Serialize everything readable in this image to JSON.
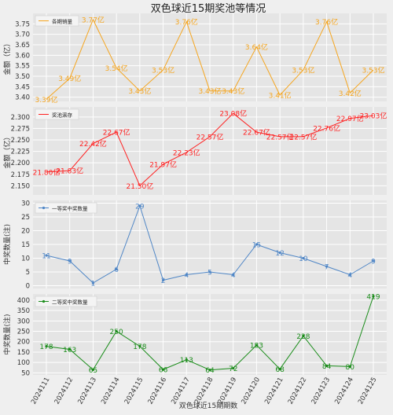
{
  "title": "双色球近15期奖池等情况",
  "chart_data": [
    {
      "type": "line",
      "legend": "各期销量",
      "ylabel": "金额（亿）",
      "ylim": [
        3.38,
        3.8
      ],
      "yticks": [
        3.4,
        3.45,
        3.5,
        3.55,
        3.6,
        3.65,
        3.7,
        3.75
      ],
      "color": "#f5a51e",
      "values": [
        3.39,
        3.49,
        3.77,
        3.54,
        3.43,
        3.53,
        3.76,
        3.43,
        3.43,
        3.64,
        3.41,
        3.53,
        3.76,
        3.42,
        3.53
      ],
      "labels": [
        "3.39亿",
        "3.49亿",
        "3.77亿",
        "3.54亿",
        "3.43亿",
        "3.53亿",
        "3.76亿",
        "3.43亿",
        "3.43亿",
        "3.64亿",
        "3.41亿",
        "3.53亿",
        "3.76亿",
        "3.42亿",
        "3.53亿"
      ],
      "grid": true
    },
    {
      "type": "line",
      "legend": "奖池滚存",
      "ylabel": "金额（亿）",
      "ylim": [
        2.13,
        2.322
      ],
      "yticks": [
        2.15,
        2.175,
        2.2,
        2.225,
        2.25,
        2.275,
        2.3
      ],
      "color": "#ff2020",
      "values": [
        21.8,
        21.83,
        22.42,
        22.67,
        21.5,
        21.97,
        22.23,
        22.57,
        23.08,
        22.67,
        22.57,
        22.57,
        22.76,
        22.97,
        23.03
      ],
      "labels": [
        "21.80亿",
        "21.83亿",
        "22.42亿",
        "22.67亿",
        "21.50亿",
        "21.97亿",
        "22.23亿",
        "22.57亿",
        "23.08亿",
        "22.67亿",
        "22.57亿",
        "22.57亿",
        "22.76亿",
        "22.97亿",
        "23.03亿"
      ],
      "grid": true
    },
    {
      "type": "line",
      "legend": "一等奖中奖数量",
      "ylabel": "中奖数量(注)",
      "ylim": [
        -1,
        31
      ],
      "yticks": [
        0,
        5,
        10,
        15,
        20,
        25,
        30
      ],
      "color": "#4f86c6",
      "values": [
        11,
        9,
        1,
        6,
        29,
        2,
        4,
        5,
        4,
        15,
        12,
        10,
        7,
        4,
        9
      ],
      "labels": [
        "11",
        "9",
        "1",
        "6",
        "29",
        "2",
        "4",
        "5",
        "4",
        "15",
        "12",
        "10",
        "7",
        "4",
        "9"
      ],
      "grid": true
    },
    {
      "type": "line",
      "legend": "二等奖中奖数量",
      "ylabel": "中奖数量(注)",
      "ylim": [
        40,
        430
      ],
      "yticks": [
        50,
        100,
        150,
        200,
        250,
        300,
        350,
        400
      ],
      "color": "#1a8c1a",
      "values": [
        178,
        163,
        65,
        250,
        178,
        66,
        113,
        64,
        72,
        183,
        68,
        228,
        84,
        80,
        419
      ],
      "labels": [
        "178",
        "163",
        "65",
        "250",
        "178",
        "66",
        "113",
        "64",
        "72",
        "183",
        "68",
        "228",
        "84",
        "80",
        "419"
      ],
      "grid": true
    }
  ],
  "x_labels": [
    "2024111",
    "2024112",
    "2024113",
    "2024114",
    "2024115",
    "2024116",
    "2024117",
    "2024118",
    "2024119",
    "2024120",
    "2024121",
    "2024122",
    "2024123",
    "2024124",
    "2024125"
  ],
  "xlabel": "双色球近15期期数"
}
